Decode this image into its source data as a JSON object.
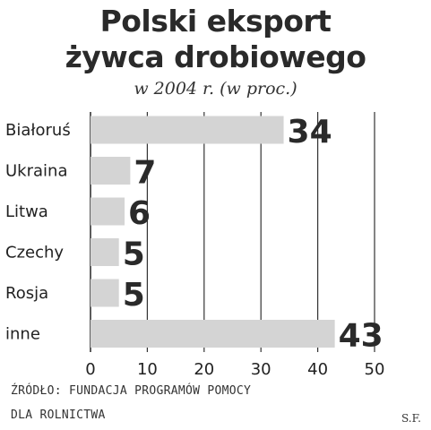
{
  "header": {
    "title_line1": "Polski eksport",
    "title_line2": "żywca drobiowego",
    "subtitle": "w 2004 r. (w proc.)"
  },
  "chart_data": {
    "type": "bar",
    "orientation": "horizontal",
    "title": "Polski eksport żywca drobiowego",
    "subtitle": "w 2004 r. (w proc.)",
    "categories": [
      "Białoruś",
      "Ukraina",
      "Litwa",
      "Czechy",
      "Rosja",
      "inne"
    ],
    "values": [
      34,
      7,
      6,
      5,
      5,
      43
    ],
    "xlim": [
      0,
      50
    ],
    "xticks": [
      0,
      10,
      20,
      30,
      40,
      50
    ],
    "grid": true,
    "bar_color": "#d4d4d4",
    "grid_color": "#333333"
  },
  "footer": {
    "source_line1": "ŹRÓDŁO: FUNDACJA PROGRAMÓW POMOCY",
    "source_line2": "DLA ROLNICTWA",
    "author": "S.F."
  }
}
